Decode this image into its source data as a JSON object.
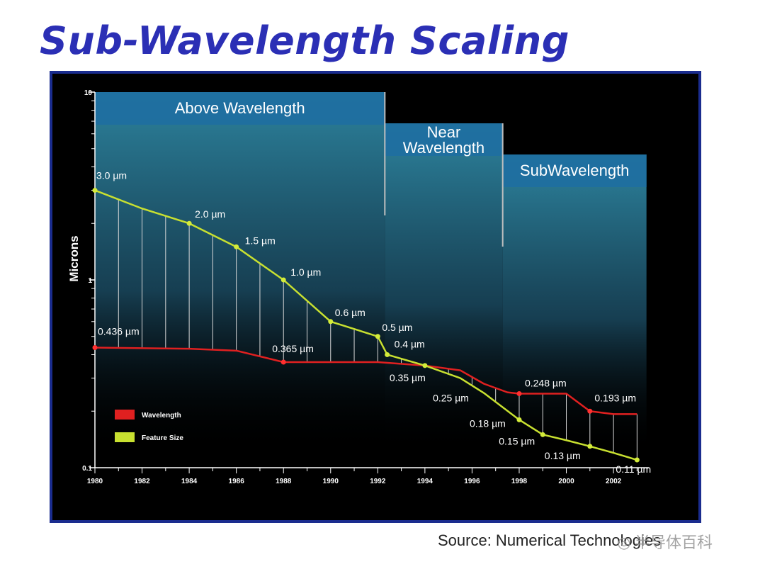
{
  "slide": {
    "title": "Sub-Wavelength Scaling",
    "source": "Source: Numerical Technologies",
    "watermark": "半导体百科"
  },
  "chart_data": {
    "type": "line",
    "title": "",
    "xlabel": "",
    "ylabel": "Microns",
    "yscale": "log",
    "ylim": [
      0.1,
      10
    ],
    "xlim": [
      1980,
      2003.5
    ],
    "x_ticks": [
      1980,
      1982,
      1984,
      1986,
      1988,
      1990,
      1992,
      1994,
      1996,
      1998,
      2000,
      2002
    ],
    "y_ticks": [
      {
        "value": 10,
        "label": "10"
      },
      {
        "value": 1,
        "label": "1"
      },
      {
        "value": 0.1,
        "label": "0.1"
      }
    ],
    "grid": false,
    "legend_position": "lower-left",
    "regions": [
      {
        "name": "Above Wavelength",
        "x_start": 1980,
        "x_end": 1992.3
      },
      {
        "name": "Near Wavelength",
        "x_start": 1992.3,
        "x_end": 1997.3
      },
      {
        "name": "SubWavelength",
        "x_start": 1997.3,
        "x_end": 2003.4
      }
    ],
    "series": [
      {
        "name": "Wavelength",
        "color": "#e02020",
        "x": [
          1980,
          1984,
          1986,
          1988,
          1990,
          1992,
          1994,
          1995.5,
          1996.5,
          1997.5,
          1998,
          1999,
          2000,
          2001,
          2002,
          2003
        ],
        "values": [
          0.436,
          0.43,
          0.42,
          0.365,
          0.365,
          0.365,
          0.35,
          0.33,
          0.28,
          0.252,
          0.248,
          0.248,
          0.248,
          0.2,
          0.193,
          0.193
        ]
      },
      {
        "name": "Feature Size",
        "color": "#c8e030",
        "x": [
          1980,
          1982,
          1984,
          1986,
          1988,
          1990,
          1992,
          1992.4,
          1994,
          1995.5,
          1996.5,
          1998,
          1999,
          2000,
          2001,
          2002,
          2003
        ],
        "values": [
          3.0,
          2.4,
          2.0,
          1.5,
          1.0,
          0.6,
          0.5,
          0.4,
          0.35,
          0.3,
          0.25,
          0.18,
          0.15,
          0.14,
          0.13,
          0.12,
          0.11
        ]
      }
    ],
    "annotations": [
      {
        "text": "3.0 µm",
        "x": 1980,
        "y": 3.0
      },
      {
        "text": "2.0 µm",
        "x": 1984,
        "y": 2.0
      },
      {
        "text": "1.5 µm",
        "x": 1986,
        "y": 1.5
      },
      {
        "text": "1.0 µm",
        "x": 1988,
        "y": 1.0
      },
      {
        "text": "0.6 µm",
        "x": 1990,
        "y": 0.6
      },
      {
        "text": "0.5 µm",
        "x": 1992,
        "y": 0.5
      },
      {
        "text": "0.4 µm",
        "x": 1992.4,
        "y": 0.4
      },
      {
        "text": "0.436 µm",
        "x": 1980,
        "y": 0.436
      },
      {
        "text": "0.365 µm",
        "x": 1988,
        "y": 0.365
      },
      {
        "text": "0.35 µm",
        "x": 1994,
        "y": 0.35
      },
      {
        "text": "0.25 µm",
        "x": 1996.5,
        "y": 0.25
      },
      {
        "text": "0.248 µm",
        "x": 1998,
        "y": 0.248
      },
      {
        "text": "0.18 µm",
        "x": 1998,
        "y": 0.18
      },
      {
        "text": "0.15 µm",
        "x": 1999,
        "y": 0.15
      },
      {
        "text": "0.13 µm",
        "x": 2001,
        "y": 0.13
      },
      {
        "text": "0.193 µm",
        "x": 2003,
        "y": 0.193
      },
      {
        "text": "0.11 µm",
        "x": 2003,
        "y": 0.11
      }
    ]
  }
}
